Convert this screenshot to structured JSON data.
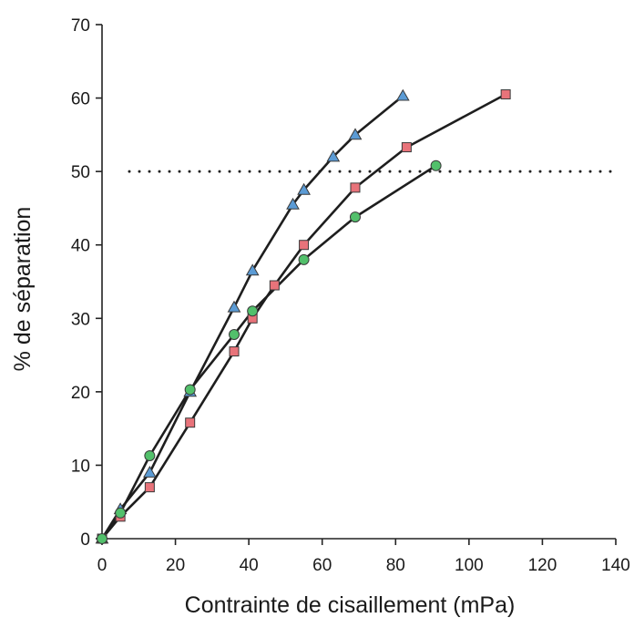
{
  "chart_data": {
    "type": "line",
    "title": "",
    "xlabel": "Contrainte de cisaillement (mPa)",
    "ylabel": "% de séparation",
    "xlim": [
      0,
      140
    ],
    "ylim": [
      0,
      70
    ],
    "xticks": [
      "0",
      "20",
      "40",
      "60",
      "80",
      "100",
      "120",
      "140"
    ],
    "yticks": [
      "0",
      "10",
      "20",
      "30",
      "40",
      "50",
      "60",
      "70"
    ],
    "grid": false,
    "legend": "none",
    "reference_line": {
      "y": 50,
      "style": "dotted"
    },
    "series": [
      {
        "marker": "triangle",
        "color": "#5b9bd5",
        "points": [
          [
            0,
            0
          ],
          [
            5,
            4
          ],
          [
            13,
            9
          ],
          [
            24,
            20
          ],
          [
            36,
            31.5
          ],
          [
            41,
            36.5
          ],
          [
            52,
            45.5
          ],
          [
            55,
            47.5
          ],
          [
            63,
            52
          ],
          [
            69,
            55
          ],
          [
            82,
            60.3
          ]
        ]
      },
      {
        "marker": "square",
        "color": "#e8737a",
        "points": [
          [
            0,
            0
          ],
          [
            5,
            3
          ],
          [
            13,
            7
          ],
          [
            24,
            15.8
          ],
          [
            36,
            25.5
          ],
          [
            41,
            30
          ],
          [
            47,
            34.5
          ],
          [
            55,
            40
          ],
          [
            69,
            47.8
          ],
          [
            83,
            53.3
          ],
          [
            110,
            60.5
          ]
        ]
      },
      {
        "marker": "circle",
        "color": "#52c06b",
        "points": [
          [
            0,
            0
          ],
          [
            5,
            3.5
          ],
          [
            13,
            11.3
          ],
          [
            24,
            20.3
          ],
          [
            36,
            27.8
          ],
          [
            41,
            31
          ],
          [
            55,
            38
          ],
          [
            69,
            43.8
          ],
          [
            91,
            50.8
          ]
        ]
      }
    ]
  }
}
